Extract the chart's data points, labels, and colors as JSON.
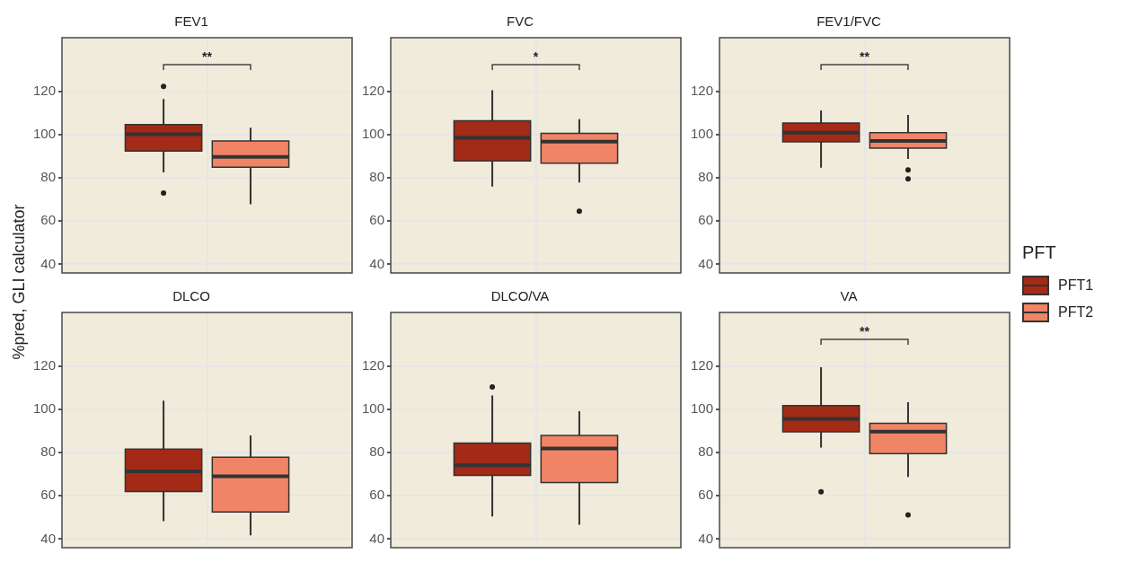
{
  "chart_data": [
    {
      "type": "box",
      "title": "FEV1",
      "ylabel": "%pred, GLI calculator",
      "legend_title": "PFT",
      "legend": "right",
      "categories": [
        null
      ],
      "ylim": [
        36,
        145
      ],
      "yticks": [
        40,
        60,
        80,
        100,
        120
      ],
      "grid": true,
      "annotations": [
        "**"
      ],
      "series": [
        {
          "name": "PFT1",
          "color": "#a32a16",
          "boxes": [
            {
              "low": 82.6,
              "q1": 92.5,
              "median": 100.3,
              "q3": 104.7,
              "high": 116.6,
              "outliers": [
                122.4,
                73
              ]
            }
          ]
        },
        {
          "name": "PFT2",
          "color": "#f08466",
          "boxes": [
            {
              "low": 67.8,
              "q1": 85,
              "median": 89.8,
              "q3": 97.2,
              "high": 103.3
            }
          ]
        }
      ]
    },
    {
      "type": "box",
      "title": "FVC",
      "categories": [
        null
      ],
      "ylim": [
        36,
        145
      ],
      "yticks": [
        40,
        60,
        80,
        100,
        120
      ],
      "grid": true,
      "annotations": [
        "*"
      ],
      "series": [
        {
          "color": "#a32a16",
          "boxes": [
            {
              "low": 76,
              "q1": 87.9,
              "median": 98.6,
              "q3": 106.5,
              "high": 120.7
            }
          ]
        },
        {
          "color": "#f08466",
          "boxes": [
            {
              "low": 77.9,
              "q1": 86.9,
              "median": 96.8,
              "q3": 100.7,
              "high": 107.2,
              "outliers": [
                64.6
              ]
            }
          ]
        }
      ]
    },
    {
      "type": "box",
      "title": "FEV1/FVC",
      "categories": [
        null
      ],
      "ylim": [
        36,
        145
      ],
      "yticks": [
        40,
        60,
        80,
        100,
        120
      ],
      "grid": true,
      "annotations": [
        "**"
      ],
      "series": [
        {
          "color": "#a32a16",
          "boxes": [
            {
              "low": 84.8,
              "q1": 96.7,
              "median": 101,
              "q3": 105.5,
              "high": 111.3
            }
          ]
        },
        {
          "color": "#f08466",
          "boxes": [
            {
              "low": 88.8,
              "q1": 93.8,
              "median": 97.2,
              "q3": 101,
              "high": 109.2,
              "outliers": [
                83.7,
                79.6
              ]
            }
          ]
        }
      ]
    },
    {
      "type": "box",
      "title": "DLCO",
      "categories": [
        null
      ],
      "ylim": [
        36,
        145
      ],
      "yticks": [
        40,
        60,
        80,
        100,
        120
      ],
      "grid": true,
      "series": [
        {
          "color": "#a32a16",
          "boxes": [
            {
              "low": 48.3,
              "q1": 62,
              "median": 71.4,
              "q3": 81.7,
              "high": 104.1
            }
          ]
        },
        {
          "color": "#f08466",
          "boxes": [
            {
              "low": 41.7,
              "q1": 52.5,
              "median": 69.1,
              "q3": 77.9,
              "high": 88
            }
          ]
        }
      ]
    },
    {
      "type": "box",
      "title": "DLCO/VA",
      "categories": [
        null
      ],
      "ylim": [
        36,
        145
      ],
      "yticks": [
        40,
        60,
        80,
        100,
        120
      ],
      "grid": true,
      "series": [
        {
          "color": "#a32a16",
          "boxes": [
            {
              "low": 50.5,
              "q1": 69.5,
              "median": 74.2,
              "q3": 84.5,
              "high": 106.5,
              "outliers": [
                110.5
              ]
            }
          ]
        },
        {
          "color": "#f08466",
          "boxes": [
            {
              "low": 46.6,
              "q1": 66.2,
              "median": 82,
              "q3": 88,
              "high": 99.2
            }
          ]
        }
      ]
    },
    {
      "type": "box",
      "title": "VA",
      "categories": [
        null
      ],
      "ylim": [
        36,
        145
      ],
      "yticks": [
        40,
        60,
        80,
        100,
        120
      ],
      "grid": true,
      "annotations": [
        "**"
      ],
      "series": [
        {
          "color": "#a32a16",
          "boxes": [
            {
              "low": 82.4,
              "q1": 89.7,
              "median": 95.7,
              "q3": 101.8,
              "high": 119.6,
              "outliers": [
                61.9
              ]
            }
          ]
        },
        {
          "color": "#f08466",
          "boxes": [
            {
              "low": 68.8,
              "q1": 79.6,
              "median": 89.8,
              "q3": 93.6,
              "high": 103.4,
              "outliers": [
                51.2
              ]
            }
          ]
        }
      ]
    }
  ]
}
